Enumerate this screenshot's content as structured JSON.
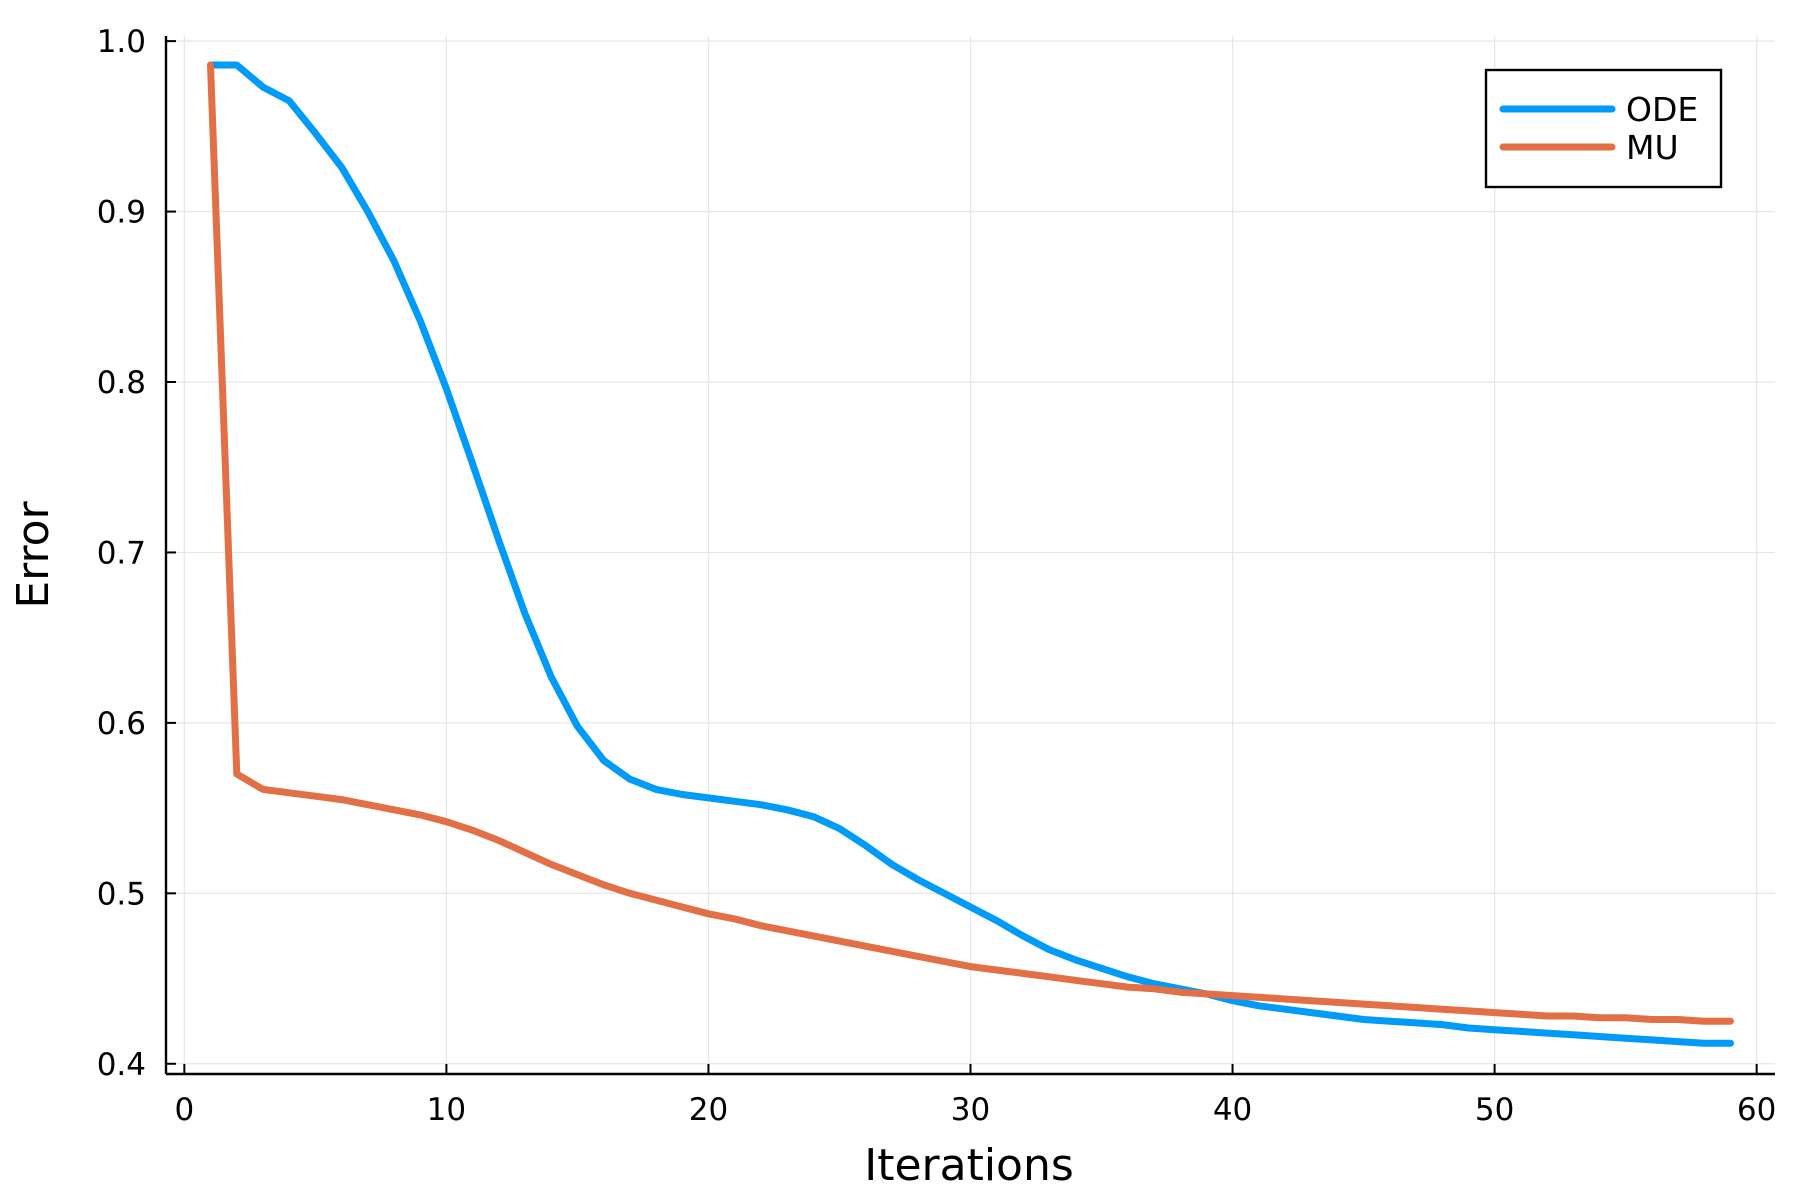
{
  "chart_data": {
    "type": "line",
    "title": "",
    "xlabel": "Iterations",
    "ylabel": "Error",
    "xlim": [
      -0.7,
      60.7
    ],
    "ylim": [
      0.394,
      1.003
    ],
    "xticks": [
      0,
      10,
      20,
      30,
      40,
      50,
      60
    ],
    "yticks": [
      0.4,
      0.5,
      0.6,
      0.7,
      0.8,
      0.9,
      1.0
    ],
    "ytick_labels": [
      "0.4",
      "0.5",
      "0.6",
      "0.7",
      "0.8",
      "0.9",
      "1.0"
    ],
    "grid": true,
    "legend_position": "top-right",
    "x": [
      1,
      2,
      3,
      4,
      5,
      6,
      7,
      8,
      9,
      10,
      11,
      12,
      13,
      14,
      15,
      16,
      17,
      18,
      19,
      20,
      21,
      22,
      23,
      24,
      25,
      26,
      27,
      28,
      29,
      30,
      31,
      32,
      33,
      34,
      35,
      36,
      37,
      38,
      39,
      40,
      41,
      42,
      43,
      44,
      45,
      46,
      47,
      48,
      49,
      50,
      51,
      52,
      53,
      54,
      55,
      56,
      57,
      58,
      59
    ],
    "series": [
      {
        "name": "ODE",
        "color": "#009af9",
        "values": [
          0.986,
          0.986,
          0.973,
          0.965,
          0.946,
          0.926,
          0.9,
          0.871,
          0.836,
          0.796,
          0.752,
          0.707,
          0.664,
          0.627,
          0.598,
          0.578,
          0.567,
          0.561,
          0.558,
          0.556,
          0.554,
          0.552,
          0.549,
          0.545,
          0.538,
          0.528,
          0.517,
          0.508,
          0.5,
          0.492,
          0.484,
          0.475,
          0.467,
          0.461,
          0.456,
          0.451,
          0.447,
          0.444,
          0.441,
          0.437,
          0.434,
          0.432,
          0.43,
          0.428,
          0.426,
          0.425,
          0.424,
          0.423,
          0.421,
          0.42,
          0.419,
          0.418,
          0.417,
          0.416,
          0.415,
          0.414,
          0.413,
          0.412,
          0.412
        ]
      },
      {
        "name": "MU",
        "color": "#e26f46",
        "values": [
          0.986,
          0.57,
          0.561,
          0.559,
          0.557,
          0.555,
          0.552,
          0.549,
          0.546,
          0.542,
          0.537,
          0.531,
          0.524,
          0.517,
          0.511,
          0.505,
          0.5,
          0.496,
          0.492,
          0.488,
          0.485,
          0.481,
          0.478,
          0.475,
          0.472,
          0.469,
          0.466,
          0.463,
          0.46,
          0.457,
          0.455,
          0.453,
          0.451,
          0.449,
          0.447,
          0.445,
          0.444,
          0.442,
          0.441,
          0.44,
          0.439,
          0.438,
          0.437,
          0.436,
          0.435,
          0.434,
          0.433,
          0.432,
          0.431,
          0.43,
          0.429,
          0.428,
          0.428,
          0.427,
          0.427,
          0.426,
          0.426,
          0.425,
          0.425
        ]
      }
    ]
  }
}
